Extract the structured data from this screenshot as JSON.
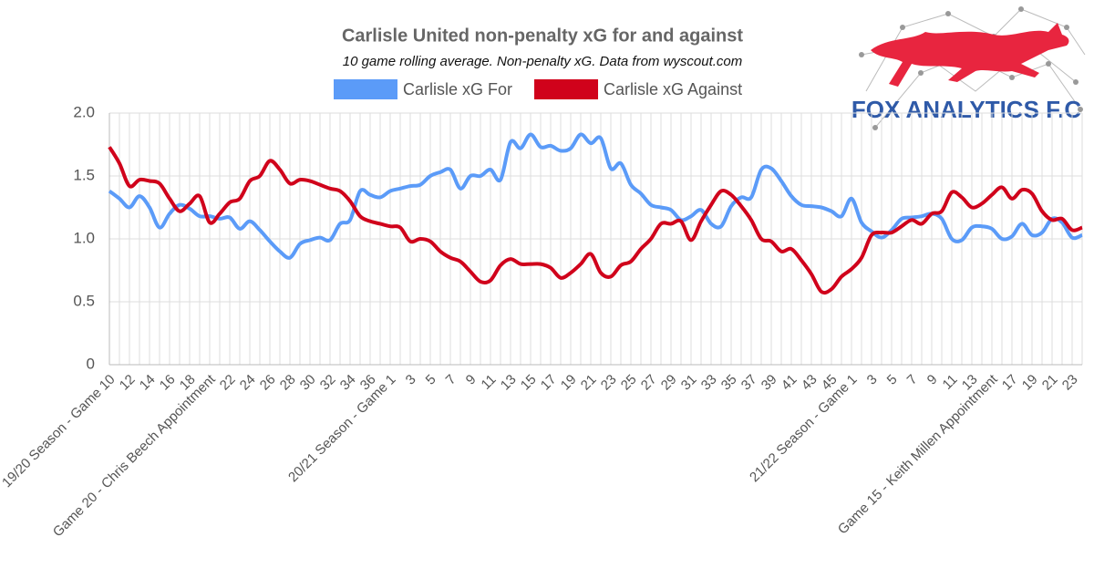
{
  "chart_data": {
    "type": "line",
    "title": "Carlisle United non-penalty xG for and against",
    "subtitle": "10 game rolling average. Non-penalty xG. Data from wyscout.com",
    "logo_text": "FOX ANALYTICS F.C",
    "categories": [
      "19/20 Season - Game 10",
      null,
      "12",
      null,
      "14",
      null,
      "16",
      null,
      "18",
      null,
      "Game 20 - Chris Beech Appointment",
      null,
      "22",
      null,
      "24",
      null,
      "26",
      null,
      "28",
      null,
      "30",
      null,
      "32",
      null,
      "34",
      null,
      "36",
      null,
      "20/21 Season - Game 1",
      null,
      "3",
      null,
      "5",
      null,
      "7",
      null,
      "9",
      null,
      "11",
      null,
      "13",
      null,
      "15",
      null,
      "17",
      null,
      "19",
      null,
      "21",
      null,
      "23",
      null,
      "25",
      null,
      "27",
      null,
      "29",
      null,
      "31",
      null,
      "33",
      null,
      "35",
      null,
      "37",
      null,
      "39",
      null,
      "41",
      null,
      "43",
      null,
      "45",
      null,
      "21/22 Season - Game 1",
      null,
      "3",
      null,
      "5",
      null,
      "7",
      null,
      "9",
      null,
      "11",
      null,
      "13",
      null,
      "Game 15 - Keith Millen Appointment",
      null,
      "17",
      null,
      "19",
      null,
      "21",
      null,
      "23",
      null
    ],
    "series": [
      {
        "name": "Carlisle xG For",
        "color": "#5b9bf8",
        "values": [
          1.38,
          1.32,
          1.25,
          1.34,
          1.25,
          1.09,
          1.2,
          1.27,
          1.24,
          1.18,
          1.18,
          1.16,
          1.17,
          1.08,
          1.14,
          1.07,
          0.98,
          0.9,
          0.85,
          0.96,
          0.99,
          1.01,
          0.99,
          1.12,
          1.15,
          1.38,
          1.35,
          1.33,
          1.38,
          1.4,
          1.42,
          1.43,
          1.5,
          1.53,
          1.55,
          1.4,
          1.5,
          1.5,
          1.55,
          1.47,
          1.77,
          1.72,
          1.83,
          1.73,
          1.74,
          1.7,
          1.72,
          1.83,
          1.76,
          1.8,
          1.56,
          1.6,
          1.43,
          1.36,
          1.27,
          1.25,
          1.23,
          1.15,
          1.18,
          1.23,
          1.12,
          1.1,
          1.26,
          1.33,
          1.33,
          1.55,
          1.56,
          1.46,
          1.34,
          1.27,
          1.26,
          1.25,
          1.22,
          1.18,
          1.32,
          1.13,
          1.06,
          1.01,
          1.07,
          1.16,
          1.17,
          1.18,
          1.2,
          1.16,
          1.0,
          0.99,
          1.09,
          1.1,
          1.08,
          1.0,
          1.02,
          1.12,
          1.03,
          1.05,
          1.16,
          1.13,
          1.01,
          1.03
        ]
      },
      {
        "name": "Carlisle xG Against",
        "color": "#d0021b",
        "values": [
          1.73,
          1.6,
          1.42,
          1.47,
          1.46,
          1.44,
          1.32,
          1.22,
          1.28,
          1.34,
          1.13,
          1.2,
          1.29,
          1.32,
          1.46,
          1.5,
          1.62,
          1.55,
          1.44,
          1.47,
          1.46,
          1.43,
          1.4,
          1.38,
          1.3,
          1.18,
          1.14,
          1.12,
          1.1,
          1.09,
          0.98,
          1.0,
          0.98,
          0.9,
          0.85,
          0.82,
          0.74,
          0.66,
          0.67,
          0.79,
          0.84,
          0.8,
          0.8,
          0.8,
          0.77,
          0.69,
          0.73,
          0.8,
          0.88,
          0.73,
          0.7,
          0.79,
          0.82,
          0.92,
          1.0,
          1.12,
          1.12,
          1.14,
          0.99,
          1.14,
          1.27,
          1.38,
          1.35,
          1.26,
          1.15,
          1.0,
          0.98,
          0.9,
          0.92,
          0.83,
          0.72,
          0.58,
          0.6,
          0.7,
          0.76,
          0.85,
          1.03,
          1.05,
          1.05,
          1.1,
          1.15,
          1.12,
          1.2,
          1.22,
          1.37,
          1.33,
          1.25,
          1.28,
          1.35,
          1.41,
          1.32,
          1.39,
          1.36,
          1.22,
          1.15,
          1.16,
          1.07,
          1.09
        ]
      }
    ],
    "ylim": [
      0,
      2
    ],
    "yticks": [
      0,
      0.5,
      {
        "value": 1,
        "label": "1.0"
      },
      1.5,
      {
        "value": 2,
        "label": "2.0"
      }
    ],
    "grid": true
  }
}
